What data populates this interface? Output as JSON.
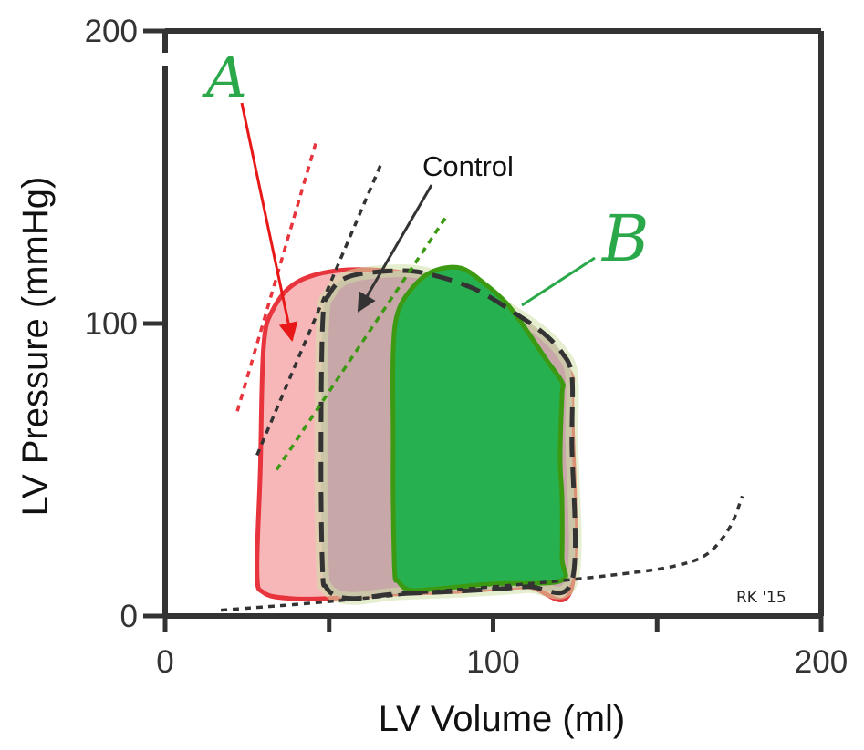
{
  "chart_data": {
    "type": "line",
    "title": "",
    "xlabel": "LV Volume (ml)",
    "ylabel": "LV Pressure (mmHg)",
    "xlim": [
      0,
      200
    ],
    "ylim": [
      0,
      200
    ],
    "xticks": [
      0,
      50,
      100,
      150,
      200
    ],
    "yticks": [
      0,
      100,
      200
    ],
    "xtick_labels": [
      "0",
      "",
      "100",
      "",
      "200"
    ],
    "ytick_labels": [
      "0",
      "100",
      "200"
    ],
    "grid": false,
    "colors": {
      "A": "#e8343c",
      "A_fill": "#f7b7b9",
      "B": "#3c9a12",
      "B_fill": "#27b04f",
      "control": "#333333",
      "control_fill": "#c8a7a9",
      "B_overlap_fill": "#cfe0a8",
      "edpvr": "#333333",
      "arrow_A": "#e81818",
      "line_B": "#2aa84a",
      "axis": "#333333"
    },
    "series": [
      {
        "name": "A",
        "kind": "pv-loop",
        "style": "solid",
        "points": [
          [
            28,
            15
          ],
          [
            29,
            50
          ],
          [
            30,
            92
          ],
          [
            33,
            105
          ],
          [
            40,
            114
          ],
          [
            52,
            118
          ],
          [
            68,
            118
          ],
          [
            82,
            115
          ],
          [
            95,
            109
          ],
          [
            106,
            101
          ],
          [
            114,
            94
          ],
          [
            120,
            87
          ],
          [
            124,
            82
          ],
          [
            124,
            72
          ],
          [
            124,
            10
          ],
          [
            110,
            10
          ],
          [
            90,
            8.5
          ],
          [
            70,
            7.5
          ],
          [
            50,
            6
          ],
          [
            38,
            6
          ],
          [
            30,
            8
          ]
        ]
      },
      {
        "name": "Control",
        "kind": "pv-loop",
        "style": "dashed",
        "points": [
          [
            48,
            15
          ],
          [
            47.5,
            50
          ],
          [
            48,
            100
          ],
          [
            50,
            110
          ],
          [
            56,
            116
          ],
          [
            70,
            118
          ],
          [
            80,
            117
          ],
          [
            94,
            112
          ],
          [
            106,
            104
          ],
          [
            115,
            97
          ],
          [
            121,
            90
          ],
          [
            124,
            82
          ],
          [
            124,
            60
          ],
          [
            124,
            12
          ],
          [
            110,
            10
          ],
          [
            90,
            8.5
          ],
          [
            70,
            7.5
          ],
          [
            58,
            6
          ],
          [
            52,
            7
          ],
          [
            49,
            10
          ]
        ]
      },
      {
        "name": "B",
        "kind": "pv-loop",
        "style": "solid",
        "points": [
          [
            70,
            15
          ],
          [
            69.5,
            40
          ],
          [
            69.5,
            60
          ],
          [
            69.5,
            90
          ],
          [
            71,
            104
          ],
          [
            76,
            113
          ],
          [
            82,
            118
          ],
          [
            90,
            119
          ],
          [
            97,
            114
          ],
          [
            104,
            107
          ],
          [
            110,
            98
          ],
          [
            116,
            88
          ],
          [
            121,
            80
          ],
          [
            121,
            76
          ],
          [
            120.5,
            60
          ],
          [
            120.5,
            50
          ],
          [
            121,
            40
          ],
          [
            121,
            20
          ],
          [
            120.5,
            12
          ],
          [
            100,
            11
          ],
          [
            80,
            9
          ],
          [
            74,
            9
          ],
          [
            71,
            12
          ]
        ]
      },
      {
        "name": "ESPVR A",
        "kind": "line",
        "style": "dotted",
        "points": [
          [
            22,
            70
          ],
          [
            46,
            162
          ]
        ]
      },
      {
        "name": "ESPVR Control",
        "kind": "line",
        "style": "dotted",
        "points": [
          [
            28,
            55
          ],
          [
            66,
            155
          ]
        ]
      },
      {
        "name": "ESPVR B",
        "kind": "line",
        "style": "dotted",
        "points": [
          [
            34,
            50
          ],
          [
            86,
            137
          ]
        ]
      },
      {
        "name": "EDPVR",
        "kind": "curve",
        "style": "dotted",
        "points": [
          [
            17,
            2
          ],
          [
            40,
            4
          ],
          [
            60,
            6
          ],
          [
            80,
            8.2
          ],
          [
            100,
            10
          ],
          [
            120,
            12
          ],
          [
            140,
            14.5
          ],
          [
            155,
            17
          ],
          [
            165,
            21
          ],
          [
            172,
            30
          ],
          [
            176,
            41
          ]
        ]
      }
    ],
    "annotations": {
      "control_label": "Control",
      "A_label": "A",
      "B_label": "B",
      "credit": "RK '15"
    }
  }
}
